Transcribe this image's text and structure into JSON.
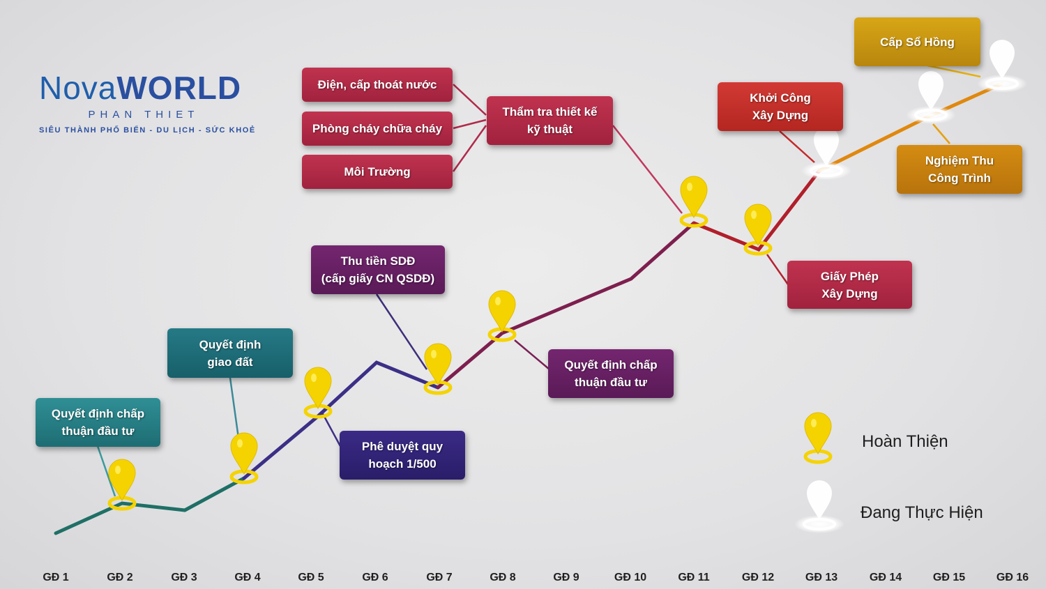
{
  "logo": {
    "brand_part1": "Nova",
    "brand_part2": "WORLD",
    "location": "PHAN THIET",
    "tagline": "SIÊU THÀNH PHỐ BIỂN - DU LỊCH - SỨC KHOẺ"
  },
  "stages": [
    "GĐ 1",
    "GĐ 2",
    "GĐ 3",
    "GĐ 4",
    "GĐ 5",
    "GĐ 6",
    "GĐ 7",
    "GĐ 8",
    "GĐ 9",
    "GĐ 10",
    "GĐ 11",
    "GĐ 12",
    "GĐ 13",
    "GĐ 14",
    "GĐ 15",
    "GĐ 16"
  ],
  "steps": [
    {
      "lines": [
        "Quyết định chấp",
        "thuận đầu tư"
      ]
    },
    {
      "lines": [
        "Quyết định",
        "giao đất"
      ]
    },
    {
      "lines": [
        "Phê duyệt quy",
        "hoạch 1/500"
      ]
    },
    {
      "lines": [
        "Thu tiền SDĐ",
        "(cấp giấy CN QSDĐ)"
      ]
    },
    {
      "lines": [
        "Quyết định chấp",
        "thuận đầu tư"
      ]
    },
    {
      "lines": [
        "Điện, cấp thoát nước"
      ]
    },
    {
      "lines": [
        "Phòng cháy chữa cháy"
      ]
    },
    {
      "lines": [
        "Môi Trường"
      ]
    },
    {
      "lines": [
        "Thẩm tra thiết kế",
        "kỹ thuật"
      ]
    },
    {
      "lines": [
        "Giấy Phép",
        "Xây Dựng"
      ]
    },
    {
      "lines": [
        "Khởi Công",
        "Xây Dựng"
      ]
    },
    {
      "lines": [
        "Nghiệm Thu",
        "Công Trình"
      ]
    },
    {
      "lines": [
        "Cấp Sổ Hồng"
      ]
    }
  ],
  "legend": {
    "completed": "Hoàn Thiện",
    "in_progress": "Đang Thực Hiện",
    "completed_icon": "yellow-location-pin-icon",
    "in_progress_icon": "white-location-pin-icon"
  },
  "colors": {
    "completed_pin": "#f4d000",
    "in_progress_pin": "#ffffff"
  }
}
